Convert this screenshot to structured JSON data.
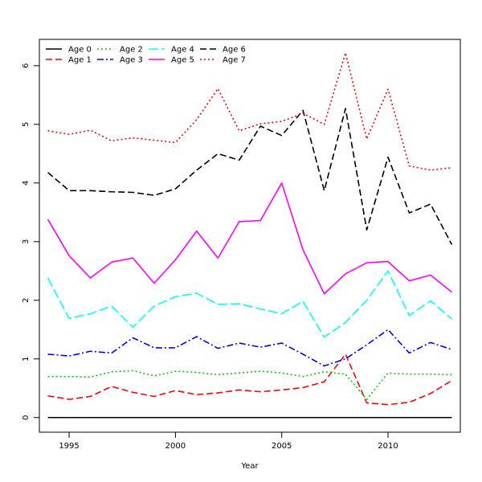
{
  "chart_data": {
    "type": "line",
    "title": "",
    "xlabel": "Year",
    "ylabel": "",
    "xlim": [
      1993.6,
      2013.4
    ],
    "ylim": [
      -0.25,
      6.45
    ],
    "x_ticks": [
      1995,
      2000,
      2005,
      2010
    ],
    "y_ticks": [
      0,
      1,
      2,
      3,
      4,
      5,
      6
    ],
    "legend_position": "top-left",
    "grid": false,
    "x": [
      1994,
      1995,
      1996,
      1997,
      1998,
      1999,
      2000,
      2001,
      2002,
      2003,
      2004,
      2005,
      2006,
      2007,
      2008,
      2009,
      2010,
      2011,
      2012,
      2013
    ],
    "series": [
      {
        "name": "Age 0",
        "color": "#000000",
        "dash": "solid",
        "values": [
          0,
          0,
          0,
          0,
          0,
          0,
          0,
          0,
          0,
          0,
          0,
          0,
          0,
          0,
          0,
          0,
          0,
          0,
          0,
          0
        ]
      },
      {
        "name": "Age 1",
        "color": "#ff0000",
        "dash": "dashed",
        "values": [
          0.37,
          0.31,
          0.36,
          0.53,
          0.43,
          0.36,
          0.46,
          0.39,
          0.42,
          0.47,
          0.44,
          0.47,
          0.51,
          0.61,
          1.08,
          0.25,
          0.22,
          0.26,
          0.41,
          0.63
        ]
      },
      {
        "name": "Age 2",
        "color": "#00cd00",
        "dash": "dotted",
        "values": [
          0.7,
          0.7,
          0.69,
          0.78,
          0.8,
          0.71,
          0.79,
          0.77,
          0.73,
          0.76,
          0.79,
          0.76,
          0.7,
          0.78,
          0.74,
          0.31,
          0.76,
          0.74,
          0.74,
          0.73
        ]
      },
      {
        "name": "Age 3",
        "color": "#0000ff",
        "dash": "dotdash",
        "values": [
          1.08,
          1.05,
          1.13,
          1.1,
          1.36,
          1.19,
          1.19,
          1.38,
          1.18,
          1.27,
          1.2,
          1.27,
          1.08,
          0.88,
          1.0,
          1.24,
          1.5,
          1.1,
          1.28,
          1.16
        ]
      },
      {
        "name": "Age 4",
        "color": "#00ffff",
        "dash": "longdash",
        "values": [
          2.38,
          1.69,
          1.77,
          1.9,
          1.54,
          1.9,
          2.06,
          2.12,
          1.93,
          1.94,
          1.85,
          1.77,
          1.98,
          1.37,
          1.62,
          2.0,
          2.5,
          1.74,
          1.99,
          1.68
        ]
      },
      {
        "name": "Age 5",
        "color": "#ff00ff",
        "dash": "solid",
        "values": [
          3.38,
          2.76,
          2.38,
          2.65,
          2.72,
          2.29,
          2.69,
          3.18,
          2.72,
          3.34,
          3.36,
          4.0,
          2.86,
          2.11,
          2.45,
          2.64,
          2.66,
          2.33,
          2.43,
          2.14
        ]
      },
      {
        "name": "Age 6",
        "color": "#000000",
        "dash": "dashed",
        "values": [
          4.18,
          3.87,
          3.87,
          3.85,
          3.84,
          3.79,
          3.9,
          4.22,
          4.5,
          4.39,
          4.97,
          4.81,
          5.24,
          3.87,
          5.27,
          3.2,
          4.44,
          3.49,
          3.64,
          2.95
        ]
      },
      {
        "name": "Age 7",
        "color": "#ff0000",
        "dash": "dotted",
        "values": [
          4.89,
          4.83,
          4.9,
          4.72,
          4.77,
          4.73,
          4.69,
          5.08,
          5.61,
          4.89,
          5.01,
          5.05,
          5.19,
          5.0,
          6.22,
          4.75,
          5.6,
          4.29,
          4.22,
          4.26
        ]
      }
    ]
  }
}
